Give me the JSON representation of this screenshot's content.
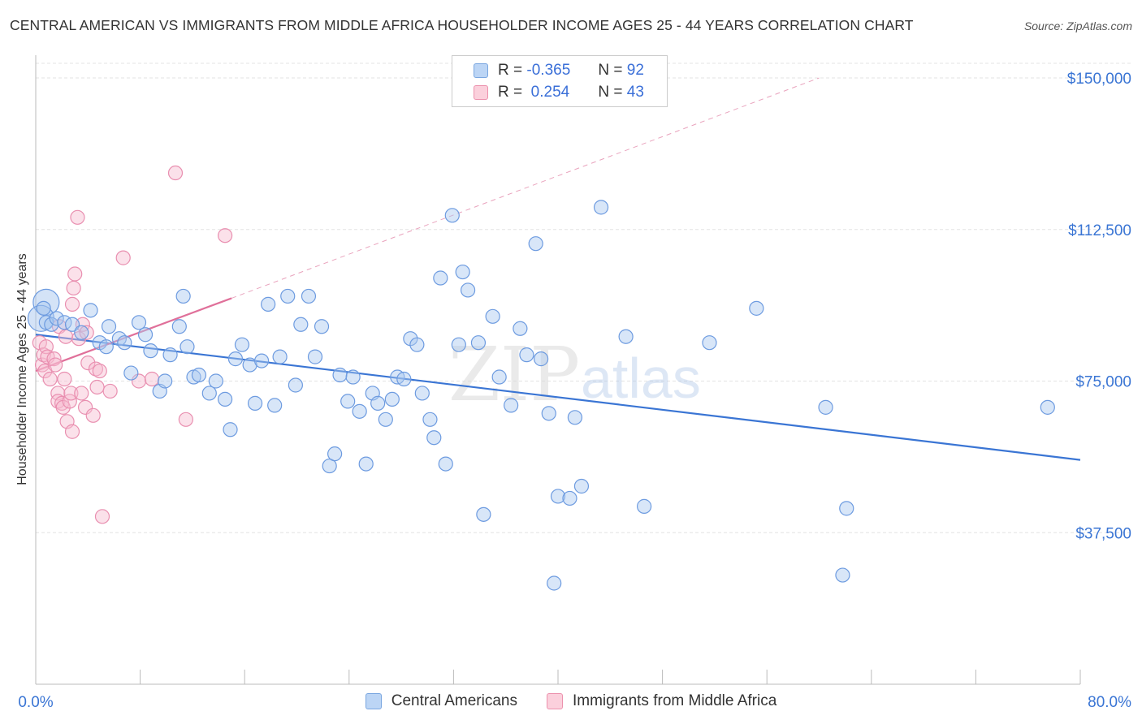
{
  "title": "CENTRAL AMERICAN VS IMMIGRANTS FROM MIDDLE AFRICA HOUSEHOLDER INCOME AGES 25 - 44 YEARS CORRELATION CHART",
  "source": "Source: ZipAtlas.com",
  "watermark": {
    "zip": "ZIP",
    "atlas": "atlas"
  },
  "legend": [
    {
      "r_label": "R =",
      "r_value": "-0.365",
      "n_label": "N =",
      "n_value": "92",
      "color": "#a8c8f0",
      "border": "#7aa6e0"
    },
    {
      "r_label": "R =",
      "r_value": " 0.254",
      "n_label": "N =",
      "n_value": "43",
      "color": "#f8bccf",
      "border": "#ec91ad"
    }
  ],
  "bottom_legend": [
    {
      "label": "Central Americans",
      "color": "#bcd5f5",
      "border": "#7aa6e0"
    },
    {
      "label": "Immigrants from Middle Africa",
      "color": "#fbd0dc",
      "border": "#ec91ad"
    }
  ],
  "chart_data": {
    "type": "scatter",
    "title": "CENTRAL AMERICAN VS IMMIGRANTS FROM MIDDLE AFRICA HOUSEHOLDER INCOME AGES 25 - 44 YEARS CORRELATION CHART",
    "xlabel": "",
    "ylabel": "Householder Income Ages 25 - 44 years",
    "xlim": [
      0,
      80
    ],
    "ylim": [
      0,
      155000
    ],
    "x_tick_labels": [
      "0.0%",
      "80.0%"
    ],
    "y_ticks": [
      37500,
      75000,
      112500,
      150000
    ],
    "y_tick_labels": [
      "$37,500",
      "$75,000",
      "$112,500",
      "$150,000"
    ],
    "grid": true,
    "legend_position": "top-center",
    "colors": {
      "blue": "#3a75d4",
      "pink": "#e0709a",
      "blue_fill": "#a9c7ef",
      "pink_fill": "#f6bdd0"
    },
    "series": [
      {
        "name": "Central Americans",
        "trend": {
          "x": [
            0,
            80
          ],
          "y": [
            86500,
            55500
          ]
        },
        "points": [
          [
            0.6,
            93
          ],
          [
            0.8,
            89.5
          ],
          [
            1.2,
            89
          ],
          [
            1.6,
            90.5
          ],
          [
            2.2,
            89.5
          ],
          [
            2.8,
            89
          ],
          [
            3.5,
            87
          ],
          [
            4.2,
            92.5
          ],
          [
            4.9,
            84.5
          ],
          [
            5.4,
            83.5
          ],
          [
            5.6,
            88.5
          ],
          [
            6.4,
            85.5
          ],
          [
            6.8,
            84.5
          ],
          [
            7.3,
            77
          ],
          [
            7.9,
            89.5
          ],
          [
            8.4,
            86.5
          ],
          [
            8.8,
            82.5
          ],
          [
            9.5,
            72.5
          ],
          [
            9.9,
            75
          ],
          [
            10.3,
            81.5
          ],
          [
            11.0,
            88.5
          ],
          [
            11.3,
            96
          ],
          [
            11.6,
            83.5
          ],
          [
            12.1,
            76
          ],
          [
            12.5,
            76.5
          ],
          [
            13.3,
            72
          ],
          [
            13.8,
            75
          ],
          [
            14.5,
            70.5
          ],
          [
            14.9,
            63
          ],
          [
            15.3,
            80.5
          ],
          [
            15.8,
            84
          ],
          [
            16.4,
            79
          ],
          [
            16.8,
            69.5
          ],
          [
            17.3,
            80
          ],
          [
            17.8,
            94
          ],
          [
            18.3,
            69
          ],
          [
            18.7,
            81
          ],
          [
            19.3,
            96
          ],
          [
            19.9,
            74
          ],
          [
            20.3,
            89
          ],
          [
            20.9,
            96
          ],
          [
            21.4,
            81
          ],
          [
            21.9,
            88.5
          ],
          [
            22.5,
            54
          ],
          [
            22.9,
            57
          ],
          [
            23.3,
            76.5
          ],
          [
            23.9,
            70
          ],
          [
            24.3,
            76
          ],
          [
            24.8,
            67.5
          ],
          [
            25.3,
            54.5
          ],
          [
            25.8,
            72
          ],
          [
            26.2,
            69.5
          ],
          [
            26.8,
            65.5
          ],
          [
            27.3,
            70.5
          ],
          [
            27.7,
            76
          ],
          [
            28.2,
            75.5
          ],
          [
            28.7,
            85.5
          ],
          [
            29.2,
            84
          ],
          [
            29.6,
            72
          ],
          [
            30.2,
            65.5
          ],
          [
            30.5,
            61
          ],
          [
            31.0,
            100.5
          ],
          [
            31.4,
            54.5
          ],
          [
            31.9,
            116
          ],
          [
            32.4,
            84
          ],
          [
            32.7,
            102
          ],
          [
            33.1,
            97.5
          ],
          [
            33.9,
            84.5
          ],
          [
            34.3,
            42
          ],
          [
            35.0,
            91
          ],
          [
            35.5,
            76
          ],
          [
            36.4,
            69
          ],
          [
            37.1,
            88
          ],
          [
            37.6,
            81.5
          ],
          [
            38.3,
            109
          ],
          [
            38.7,
            80.5
          ],
          [
            39.3,
            67
          ],
          [
            39.7,
            25
          ],
          [
            40.0,
            46.5
          ],
          [
            40.9,
            46
          ],
          [
            41.3,
            66
          ],
          [
            41.8,
            49
          ],
          [
            43.3,
            118
          ],
          [
            45.2,
            86
          ],
          [
            46.6,
            44
          ],
          [
            51.6,
            84.5
          ],
          [
            55.2,
            93
          ],
          [
            60.5,
            68.5
          ],
          [
            61.8,
            27
          ],
          [
            62.1,
            43.5
          ],
          [
            77.5,
            68.5
          ]
        ],
        "large_points": [
          [
            0.8,
            94.5
          ],
          [
            0.4,
            90.5
          ]
        ]
      },
      {
        "name": "Immigrants from Middle Africa",
        "trend": {
          "x": [
            0,
            15
          ],
          "y": [
            77500,
            95500
          ]
        },
        "trend_extrapolated": {
          "x": [
            15,
            60
          ],
          "y": [
            95500,
            150000
          ]
        },
        "points": [
          [
            0.3,
            84.5
          ],
          [
            0.5,
            79
          ],
          [
            0.6,
            81.5
          ],
          [
            0.7,
            77.5
          ],
          [
            0.8,
            83.5
          ],
          [
            0.9,
            81
          ],
          [
            1.1,
            75.5
          ],
          [
            1.4,
            80.5
          ],
          [
            1.5,
            79
          ],
          [
            1.7,
            72
          ],
          [
            1.7,
            70
          ],
          [
            1.8,
            88.5
          ],
          [
            2.0,
            69.5
          ],
          [
            2.1,
            68.5
          ],
          [
            2.2,
            75.5
          ],
          [
            2.3,
            86
          ],
          [
            2.4,
            65
          ],
          [
            2.6,
            70
          ],
          [
            2.7,
            72
          ],
          [
            2.8,
            62.5
          ],
          [
            2.8,
            94
          ],
          [
            2.9,
            98
          ],
          [
            3.0,
            101.5
          ],
          [
            3.2,
            115.5
          ],
          [
            3.3,
            85.5
          ],
          [
            3.5,
            72
          ],
          [
            3.6,
            89
          ],
          [
            3.8,
            68.5
          ],
          [
            3.9,
            87
          ],
          [
            4.0,
            79.5
          ],
          [
            4.4,
            66.5
          ],
          [
            4.6,
            78
          ],
          [
            4.7,
            73.5
          ],
          [
            4.9,
            77.5
          ],
          [
            5.1,
            41.5
          ],
          [
            5.7,
            72.5
          ],
          [
            6.7,
            105.5
          ],
          [
            7.9,
            75
          ],
          [
            8.9,
            75.5
          ],
          [
            10.7,
            126.5
          ],
          [
            11.5,
            65.5
          ],
          [
            14.5,
            111
          ]
        ]
      }
    ]
  }
}
